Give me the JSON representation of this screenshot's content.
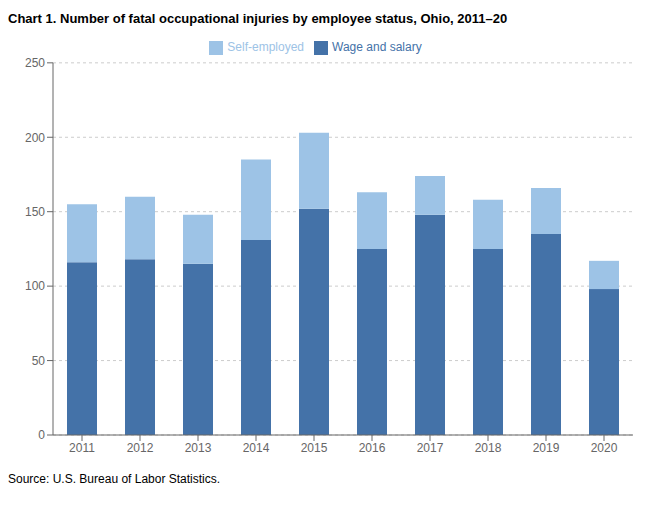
{
  "chart_data": {
    "type": "bar",
    "title": "Chart 1. Number of fatal occupational injuries by employee status, Ohio, 2011–20",
    "categories": [
      "2011",
      "2012",
      "2013",
      "2014",
      "2015",
      "2016",
      "2017",
      "2018",
      "2019",
      "2020"
    ],
    "series": [
      {
        "name": "Wage and salary",
        "color": "#4472A8",
        "values": [
          116,
          118,
          115,
          131,
          152,
          125,
          148,
          125,
          135,
          98
        ]
      },
      {
        "name": "Self-employed",
        "color": "#9DC3E6",
        "values": [
          39,
          42,
          33,
          54,
          51,
          38,
          26,
          33,
          31,
          19
        ]
      }
    ],
    "stacked": true,
    "ylim": [
      0,
      250
    ],
    "yticks": [
      0,
      50,
      100,
      150,
      200,
      250
    ],
    "grid": true,
    "legend": "top",
    "annotations": [
      "Source: U.S. Bureau of Labor Statistics."
    ]
  }
}
